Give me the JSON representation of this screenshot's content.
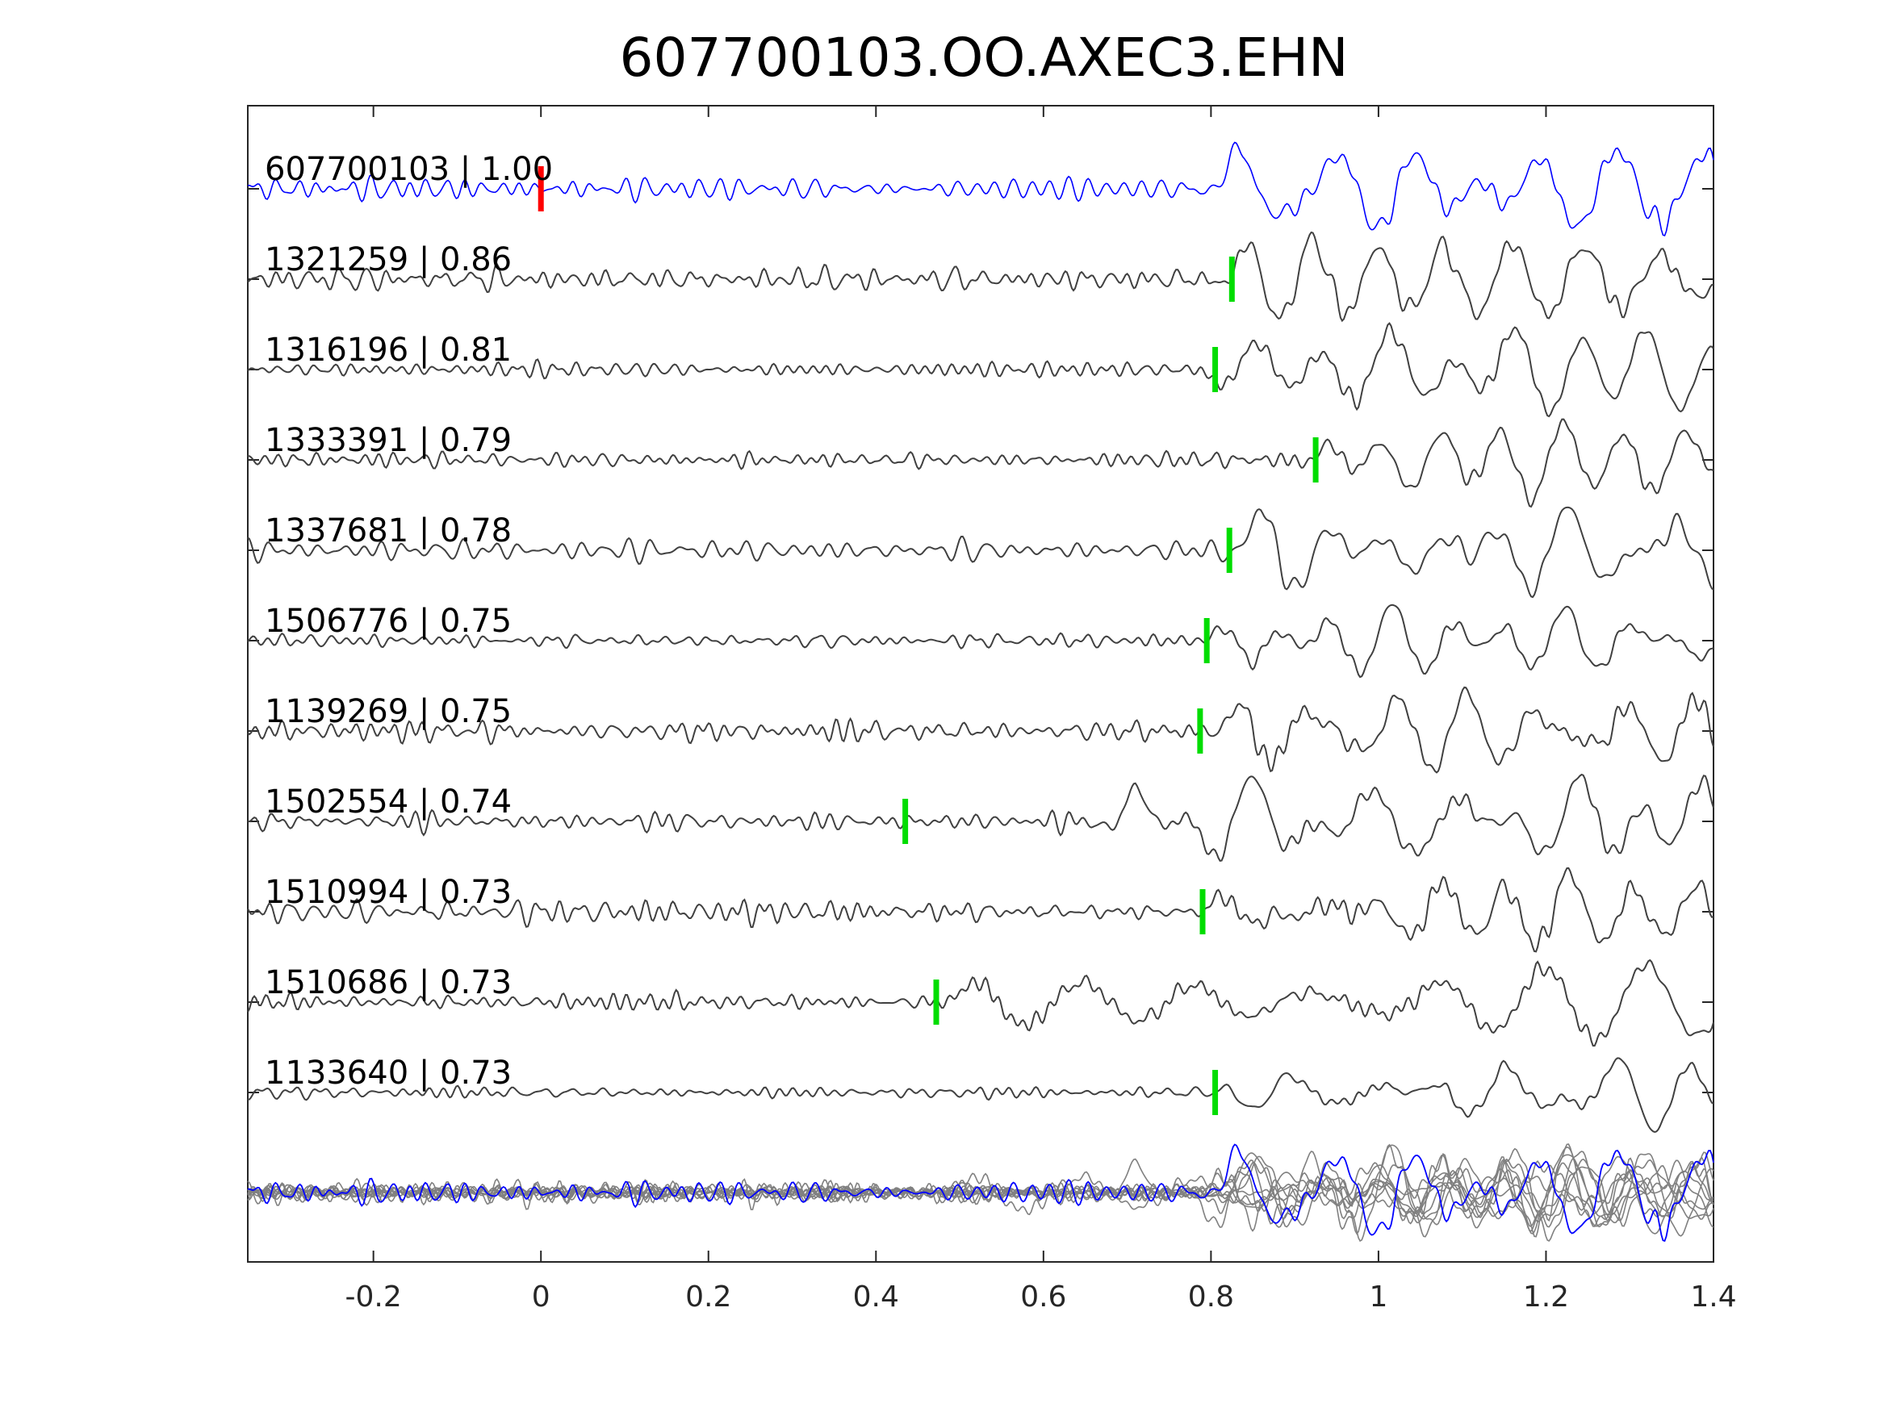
{
  "chart_data": {
    "type": "line",
    "title": "607700103.OO.AXEC3.EHN",
    "xlabel": "",
    "ylabel": "",
    "xlim": [
      -0.35,
      1.4
    ],
    "xticks": [
      -0.2,
      0,
      0.2,
      0.4,
      0.6,
      0.8,
      1,
      1.2,
      1.4
    ],
    "xtick_labels": [
      "-0.2",
      "0",
      "0.2",
      "0.4",
      "0.6",
      "0.8",
      "1",
      "1.2",
      "1.4"
    ],
    "grid": false,
    "colors": {
      "reference": "#0000ff",
      "trace": "#404040",
      "stack": "#808080",
      "ref_pick": "#ff0000",
      "pick": "#00dd00"
    },
    "traces": [
      {
        "id": "607700103",
        "cc": "1.00",
        "label": "607700103 | 1.00",
        "pick": 0.0,
        "pick_type": "reference",
        "onset": 0.79,
        "amp": 0.45
      },
      {
        "id": "1321259",
        "cc": "0.86",
        "label": "1321259 | 0.86",
        "pick": 0.825,
        "pick_type": "match",
        "onset": 0.8,
        "amp": 0.45
      },
      {
        "id": "1316196",
        "cc": "0.81",
        "label": "1316196 | 0.81",
        "pick": 0.805,
        "pick_type": "match",
        "onset": 0.78,
        "amp": 0.45
      },
      {
        "id": "1333391",
        "cc": "0.79",
        "label": "1333391 | 0.79",
        "pick": 0.925,
        "pick_type": "match",
        "onset": 0.9,
        "amp": 0.45
      },
      {
        "id": "1337681",
        "cc": "0.78",
        "label": "1337681 | 0.78",
        "pick": 0.822,
        "pick_type": "match",
        "onset": 0.81,
        "amp": 0.45
      },
      {
        "id": "1506776",
        "cc": "0.75",
        "label": "1506776 | 0.75",
        "pick": 0.795,
        "pick_type": "match",
        "onset": 0.79,
        "amp": 0.35
      },
      {
        "id": "1139269",
        "cc": "0.75",
        "label": "1139269 | 0.75",
        "pick": 0.787,
        "pick_type": "match",
        "onset": 0.8,
        "amp": 0.42
      },
      {
        "id": "1502554",
        "cc": "0.74",
        "label": "1502554 | 0.74",
        "pick": 0.435,
        "pick_type": "match",
        "onset": 0.66,
        "amp": 0.45
      },
      {
        "id": "1510994",
        "cc": "0.73",
        "label": "1510994 | 0.73",
        "pick": 0.79,
        "pick_type": "match",
        "onset": 0.78,
        "amp": 0.42
      },
      {
        "id": "1510686",
        "cc": "0.73",
        "label": "1510686 | 0.73",
        "pick": 0.472,
        "pick_type": "match",
        "onset": 0.48,
        "amp": 0.42
      },
      {
        "id": "1133640",
        "cc": "0.73",
        "label": "1133640 | 0.73",
        "pick": 0.805,
        "pick_type": "match",
        "onset": 0.8,
        "amp": 0.38
      }
    ],
    "stack": {
      "description_present": false,
      "overlay_of_all_traces": true
    }
  }
}
